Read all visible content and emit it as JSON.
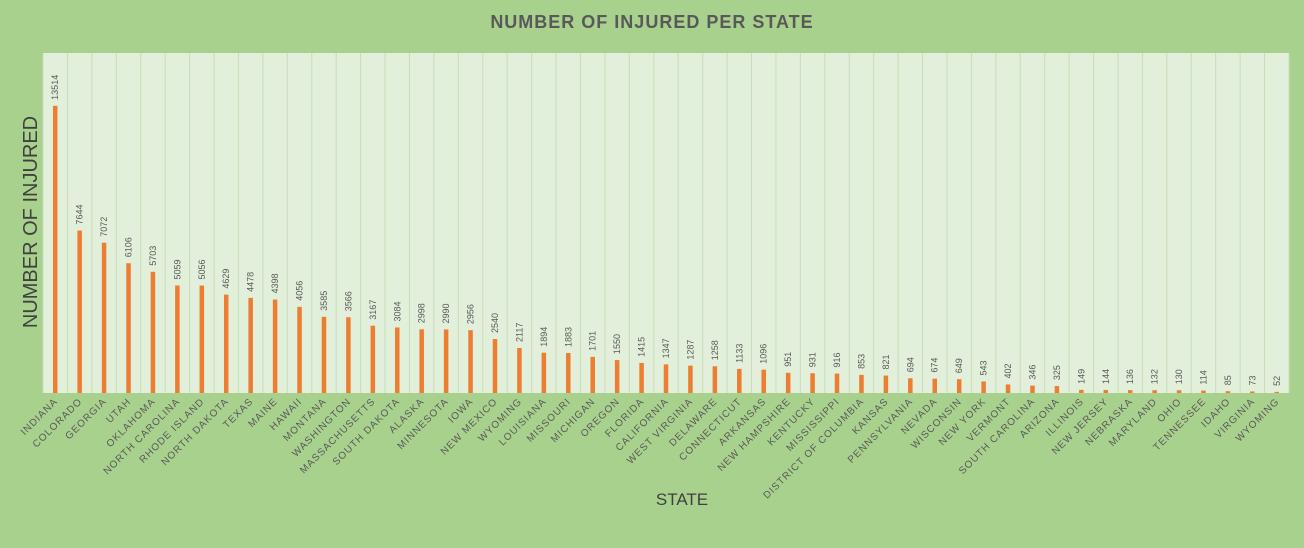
{
  "chart_data": {
    "type": "bar",
    "title": "NUMBER OF INJURED PER STATE",
    "xlabel": "STATE",
    "ylabel": "NUMBER OF INJURED",
    "categories": [
      "INDIANA",
      "COLORADO",
      "GEORGIA",
      "UTAH",
      "OKLAHOMA",
      "NORTH CAROLINA",
      "RHODE ISLAND",
      "NORTH DAKOTA",
      "TEXAS",
      "MAINE",
      "HAWAII",
      "MONTANA",
      "WASHINGTON",
      "MASSACHUSETTS",
      "SOUTH DAKOTA",
      "ALASKA",
      "MINNESOTA",
      "IOWA",
      "NEW MEXICO",
      "WYOMING",
      "LOUISIANA",
      "MISSOURI",
      "MICHIGAN",
      "OREGON",
      "FLORIDA",
      "CALIFORNIA",
      "WEST VIRGINIA",
      "DELAWARE",
      "CONNECTICUT",
      "ARKANSAS",
      "NEW HAMPSHIRE",
      "KENTUCKY",
      "MISSISSIPPI",
      "DISTRICT OF COLUMBIA",
      "KANSAS",
      "PENNSYLVANIA",
      "NEVADA",
      "WISCONSIN",
      "NEW YORK",
      "VERMONT",
      "SOUTH CAROLINA",
      "ARIZONA",
      "ILLINOIS",
      "NEW JERSEY",
      "NEBRASKA",
      "MARYLAND",
      "OHIO",
      "TENNESSEE",
      "IDAHO",
      "VIRGINIA",
      "WYOMING"
    ],
    "values": [
      13514,
      7644,
      7072,
      6106,
      5703,
      5059,
      5056,
      4629,
      4478,
      4398,
      4056,
      3585,
      3566,
      3167,
      3084,
      2998,
      2990,
      2956,
      2540,
      2117,
      1894,
      1883,
      1701,
      1550,
      1415,
      1347,
      1287,
      1258,
      1133,
      1096,
      951,
      931,
      916,
      853,
      821,
      694,
      674,
      649,
      543,
      402,
      346,
      325,
      149,
      144,
      136,
      132,
      130,
      114,
      85,
      73,
      52
    ],
    "ylim": [
      0,
      16000
    ],
    "grid": "vertical",
    "legend": "none",
    "colors": {
      "background": "#a9d18e",
      "plot_area": "#e2efda",
      "bar": "#ed7d31",
      "gridline": "#c9ddb9",
      "text": "#595959"
    }
  }
}
